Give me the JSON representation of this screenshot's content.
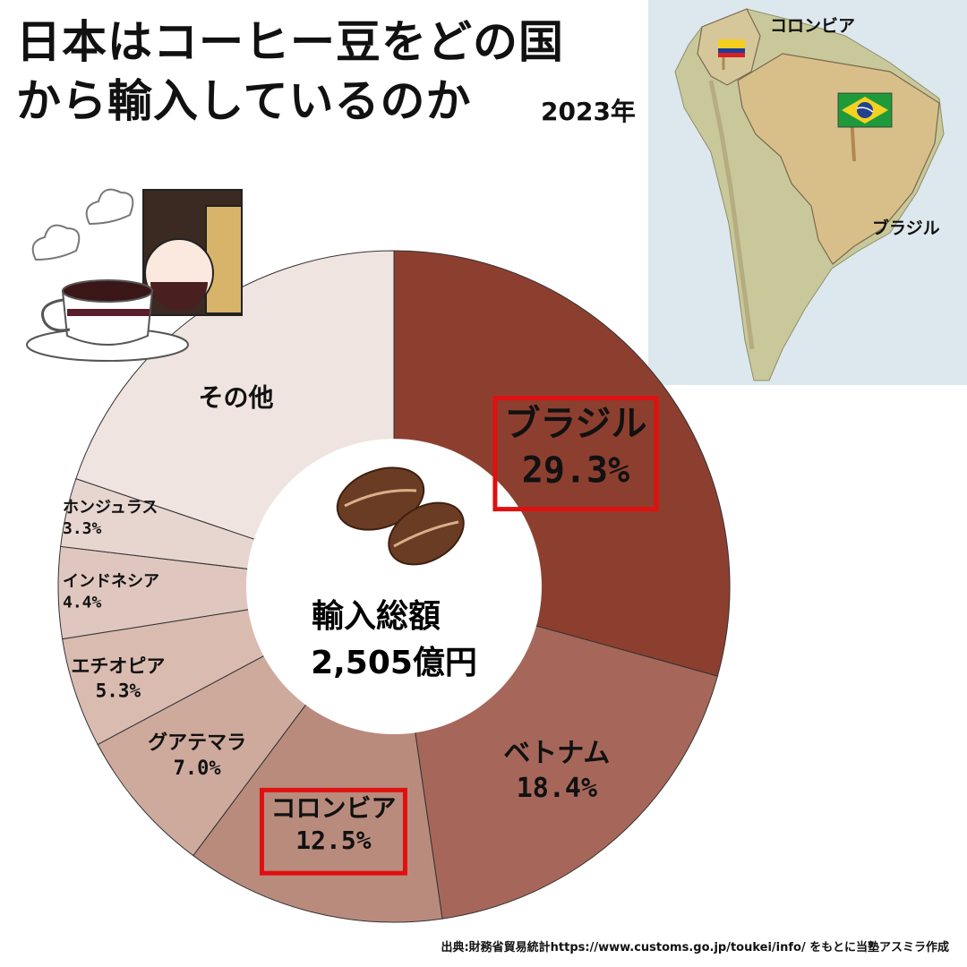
{
  "header": {
    "title_line1": "日本はコーヒー豆をどの国",
    "title_line2": "から輸入しているのか",
    "year": "2023年"
  },
  "map": {
    "label_colombia": "コロンビア",
    "label_brazil": "ブラジル",
    "colors": {
      "sea": "#dde8ee",
      "land": "#c8c89a",
      "highlight": "#d8bf8a"
    }
  },
  "center": {
    "label": "輸入総額",
    "value": "2,505億円"
  },
  "source": "出典:財務省貿易統計https://www.customs.go.jp/toukei/info/ をもとに当塾アスミラ作成",
  "chart_data": {
    "type": "pie",
    "variant": "donut",
    "unit": "%",
    "start": "top, clockwise",
    "slices": [
      {
        "label": "ブラジル",
        "value": 29.3,
        "display": "29.3%",
        "color": "#8d3f2f",
        "text_color": "#111111",
        "highlight": true
      },
      {
        "label": "ベトナム",
        "value": 18.4,
        "display": "18.4%",
        "color": "#a6675a",
        "text_color": "#111111",
        "highlight": false
      },
      {
        "label": "コロンビア",
        "value": 12.5,
        "display": "12.5%",
        "color": "#b98b7d",
        "text_color": "#111111",
        "highlight": true
      },
      {
        "label": "グアテマラ",
        "value": 7.0,
        "display": "7.0%",
        "color": "#ceaa9d",
        "text_color": "#111111",
        "highlight": false
      },
      {
        "label": "エチオピア",
        "value": 5.3,
        "display": "5.3%",
        "color": "#d9bbb0",
        "text_color": "#111111",
        "highlight": false
      },
      {
        "label": "インドネシア",
        "value": 4.4,
        "display": "4.4%",
        "color": "#dfc7bf",
        "text_color": "#111111",
        "highlight": false
      },
      {
        "label": "ホンジュラス",
        "value": 3.3,
        "display": "3.3%",
        "color": "#e7d6d0",
        "text_color": "#111111",
        "highlight": false
      },
      {
        "label": "その他",
        "value": 19.8,
        "display": "",
        "color": "#efe4e0",
        "text_color": "#111111",
        "highlight": false
      }
    ],
    "highlight_color": "#e01010"
  }
}
